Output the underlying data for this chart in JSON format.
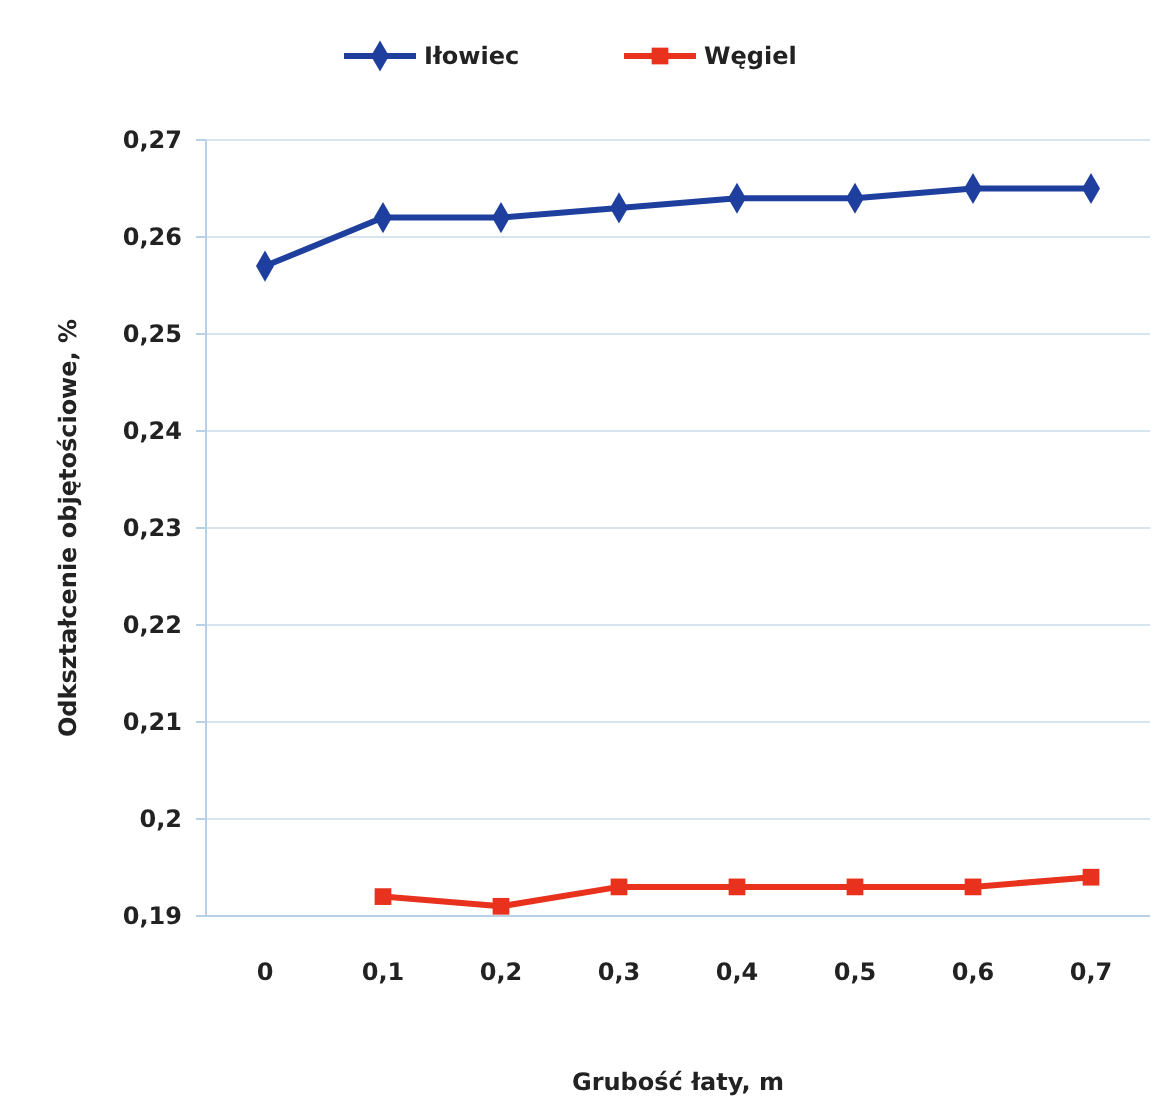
{
  "chart_data": {
    "type": "line",
    "xlabel": "Grubość łaty, m",
    "ylabel": "Odkształcenie objętościowe, %",
    "categories": [
      "0",
      "0,1",
      "0,2",
      "0,3",
      "0,4",
      "0,5",
      "0,6",
      "0,7"
    ],
    "series": [
      {
        "name": "Iłowiec",
        "color": "#1f3f9f",
        "marker": "diamond",
        "values": [
          0.257,
          0.262,
          0.262,
          0.263,
          0.264,
          0.264,
          0.265,
          0.265
        ]
      },
      {
        "name": "Węgiel",
        "color": "#e8321e",
        "marker": "square",
        "values": [
          null,
          0.192,
          0.191,
          0.193,
          0.193,
          0.193,
          0.193,
          0.194
        ]
      }
    ],
    "ylim": [
      0.19,
      0.27
    ],
    "yticks": [
      {
        "value": 0.19,
        "label": "0,19"
      },
      {
        "value": 0.2,
        "label": "0,2"
      },
      {
        "value": 0.21,
        "label": "0,21"
      },
      {
        "value": 0.22,
        "label": "0,22"
      },
      {
        "value": 0.23,
        "label": "0,23"
      },
      {
        "value": 0.24,
        "label": "0,24"
      },
      {
        "value": 0.25,
        "label": "0,25"
      },
      {
        "value": 0.26,
        "label": "0,26"
      },
      {
        "value": 0.27,
        "label": "0,27"
      }
    ],
    "grid": "y",
    "legend": "top"
  }
}
